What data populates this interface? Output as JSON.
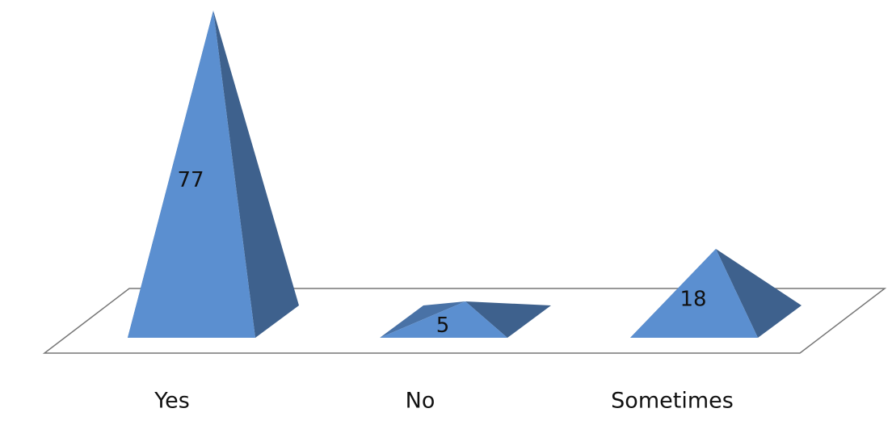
{
  "chart_data": {
    "type": "pyramid",
    "categories": [
      "Yes",
      "No",
      "Sometimes"
    ],
    "values": [
      77,
      5,
      18
    ],
    "color": "#5b8fd0"
  }
}
